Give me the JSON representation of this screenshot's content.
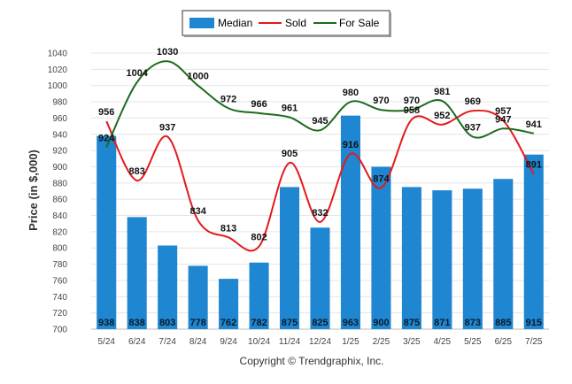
{
  "chart_data": {
    "type": "bar",
    "ylabel": "Price (in $,000)",
    "ylim": [
      700,
      1040
    ],
    "yticks": [
      700,
      720,
      740,
      760,
      780,
      800,
      820,
      840,
      860,
      880,
      900,
      920,
      940,
      960,
      980,
      1000,
      1020,
      1040
    ],
    "categories": [
      "5/24",
      "6/24",
      "7/24",
      "8/24",
      "9/24",
      "10/24",
      "11/24",
      "12/24",
      "1/25",
      "2/25",
      "3/25",
      "4/25",
      "5/25",
      "6/25",
      "7/25"
    ],
    "series": [
      {
        "name": "Median",
        "kind": "bar",
        "color": "#1f86d1",
        "values": [
          938,
          838,
          803,
          778,
          762,
          782,
          875,
          825,
          963,
          900,
          875,
          871,
          873,
          885,
          915
        ]
      },
      {
        "name": "Sold",
        "kind": "line",
        "color": "#e31a1c",
        "values": [
          956,
          883,
          937,
          834,
          813,
          802,
          905,
          832,
          916,
          874,
          958,
          952,
          969,
          957,
          891
        ]
      },
      {
        "name": "For Sale",
        "kind": "line",
        "color": "#1e6b1e",
        "values": [
          924,
          1004,
          1030,
          1000,
          972,
          966,
          961,
          945,
          980,
          970,
          970,
          981,
          937,
          947,
          941
        ]
      }
    ],
    "grid": true,
    "legend": "top-center"
  },
  "credit": "Copyright © Trendgraphix, Inc."
}
